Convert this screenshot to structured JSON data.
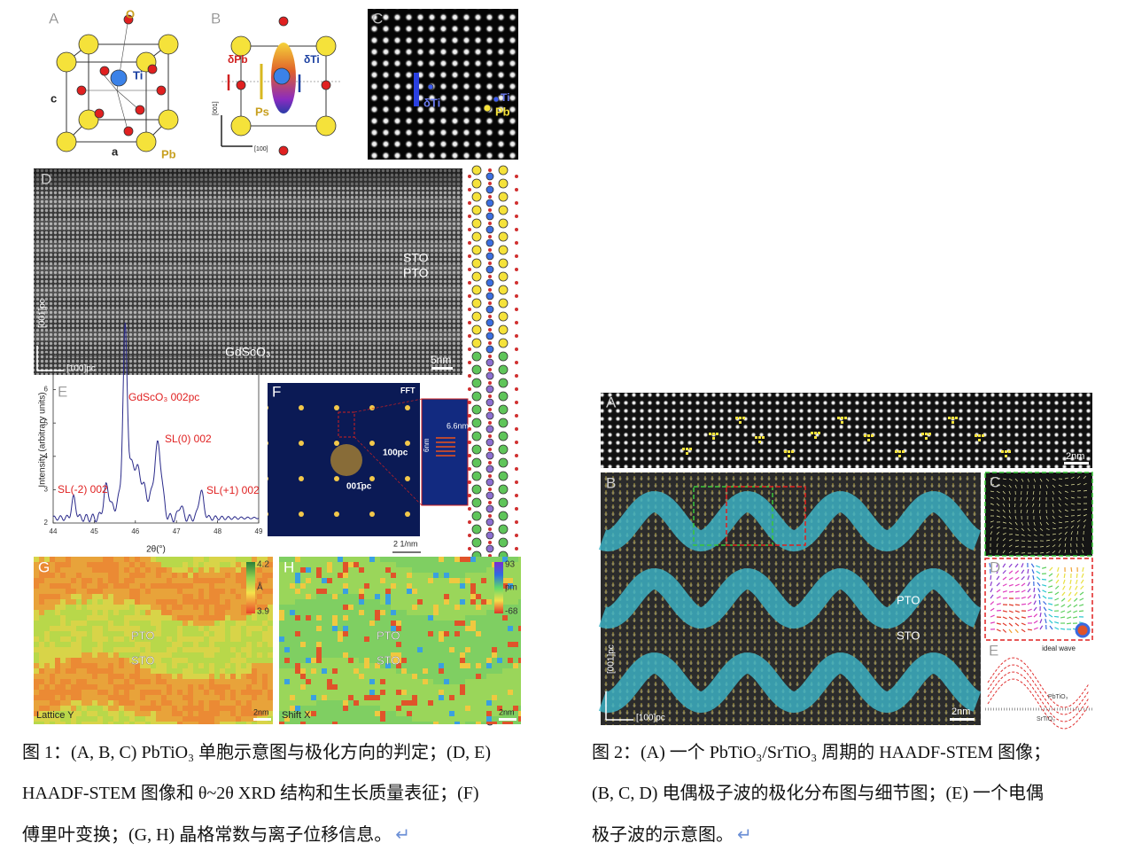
{
  "figure1": {
    "panel_a": {
      "label": "A",
      "o_site": "O",
      "ti": "Ti",
      "c_axis": "c",
      "a_axis": "a",
      "pb": "Pb"
    },
    "panel_b": {
      "label": "B",
      "delta_pb": "δPb",
      "delta_ti": "δTi",
      "ps": "Ps",
      "axis_001": "[001]",
      "axis_100": "[100]"
    },
    "panel_c": {
      "label": "C",
      "delta_ti": "δTi",
      "ti": "Ti",
      "pb": "Pb"
    },
    "panel_d": {
      "label": "D",
      "sto": "STO",
      "pto": "PTO",
      "substrate": "GdScO₃",
      "axis_001": "[001]pc",
      "axis_100": "[100]pc",
      "scale": "5nm"
    },
    "panel_e": {
      "label": "E",
      "y_label": "Intensity (arbitrary units)",
      "x_label": "2θ(°)",
      "xticks": [
        44,
        45,
        46,
        47,
        48,
        49
      ],
      "yticks": [
        2,
        3,
        4,
        5,
        6,
        7
      ],
      "peaks": [
        "GdScO₃  002pc",
        "SL(0)  002",
        "SL(-2)  002",
        "SL(+1)  002"
      ]
    },
    "panel_f": {
      "label": "F",
      "fft": "FFT",
      "spot_100": "100pc",
      "spot_001": "001̄pc",
      "period": "6.6nm",
      "height": "6nm",
      "scale": "2 1/nm"
    },
    "panel_g": {
      "label": "G",
      "max": 4.2,
      "unit": "Å",
      "min": 3.9,
      "pto": "PTO",
      "sto": "STO",
      "name": "Lattice Y",
      "scale": "2nm"
    },
    "panel_h": {
      "label": "H",
      "max": 93,
      "unit": "pm",
      "min": -68,
      "pto": "PTO",
      "sto": "STO",
      "name": "Shift X",
      "scale": "2nm"
    },
    "caption": {
      "lines": [
        "图 1：(A, B, C) PbTiO₃ 单胞示意图与极化方向的判定；(D, E)",
        "HAADF-STEM 图像和 θ~2θ XRD 结构和生长质量表征；(F)",
        "傅里叶变换；(G, H)  晶格常数与离子位移信息。"
      ],
      "return_mark": "↵"
    }
  },
  "figure2": {
    "panel_a": {
      "label": "A",
      "scale": "2nm"
    },
    "panel_b": {
      "label": "B",
      "pto": "PTO",
      "sto": "STO",
      "axis_001": "[001]pc",
      "axis_100": "[100]pc",
      "scale": "2nm"
    },
    "panel_c": {
      "label": "C"
    },
    "panel_d": {
      "label": "D",
      "legend": "ideal  wave"
    },
    "panel_e": {
      "label": "E",
      "pto": "PbTiO₃",
      "sto": "SrTiO₃"
    },
    "caption": {
      "lines": [
        "图 2：(A)  一个 PbTiO₃/SrTiO₃ 周期的 HAADF-STEM 图像；",
        "(B, C, D)  电偶极子波的极化分布图与细节图；(E)  一个电偶",
        "极子波的示意图。"
      ],
      "return_mark": "↵"
    }
  }
}
